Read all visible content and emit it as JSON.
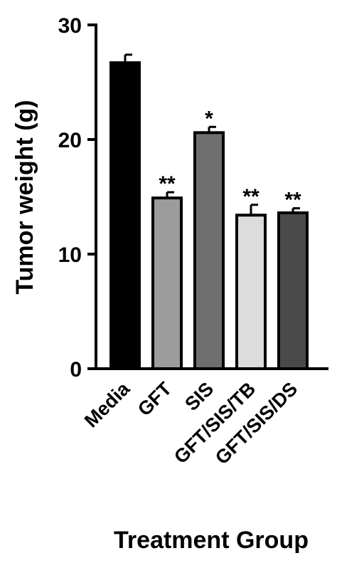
{
  "chart_data": {
    "type": "bar",
    "title": "",
    "xlabel": "Treatment Group",
    "ylabel": "Tumor weight (g)",
    "ylim": [
      0,
      30
    ],
    "yticks": [
      "0",
      "10",
      "20",
      "30"
    ],
    "grid": false,
    "categories": [
      "Media",
      "GFT",
      "SIS",
      "GFT/SIS/TB",
      "GFT/SIS/DS"
    ],
    "values": [
      26.7,
      14.9,
      20.6,
      13.4,
      13.6
    ],
    "errors": [
      0.7,
      0.5,
      0.5,
      0.9,
      0.4
    ],
    "significance": [
      "",
      "**",
      "*",
      "**",
      "**"
    ],
    "colors": [
      "#000000",
      "#9c9c9c",
      "#6e6e6e",
      "#dcdcdc",
      "#4a4a4a"
    ]
  }
}
